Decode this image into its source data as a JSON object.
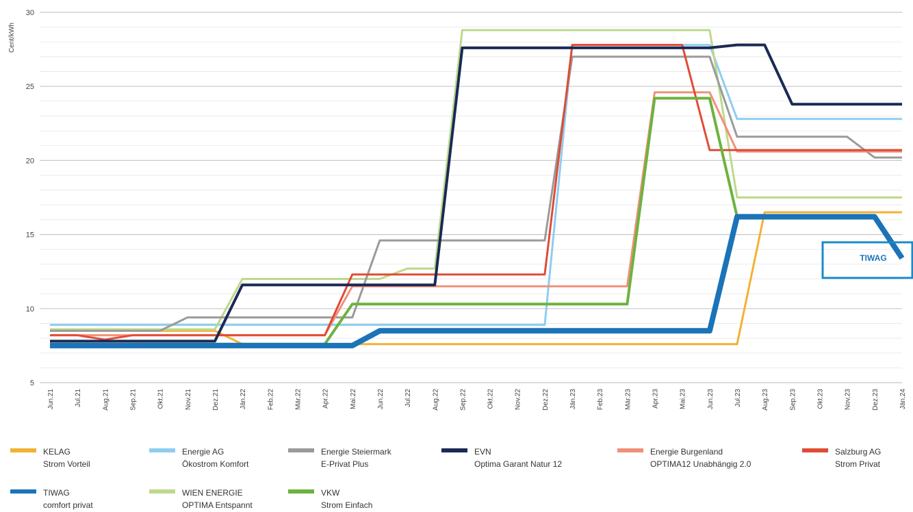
{
  "chart_data": {
    "type": "line",
    "ylabel": "Cent/kWh",
    "ylim": [
      5,
      30
    ],
    "yticks": [
      5,
      10,
      15,
      20,
      25,
      30
    ],
    "grid": true,
    "legend_position": "bottom",
    "categories": [
      "Jun.21",
      "Jul.21",
      "Aug.21",
      "Sep.21",
      "Okt.21",
      "Nov.21",
      "Dez.21",
      "Jän.22",
      "Feb.22",
      "Mär.22",
      "Apr.22",
      "Mai.22",
      "Jun.22",
      "Jul.22",
      "Aug.22",
      "Sep.22",
      "Okt.22",
      "Nov.22",
      "Dez.22",
      "Jän.23",
      "Feb.23",
      "Mär.23",
      "Apr.23",
      "Mai.23",
      "Jun.23",
      "Jul.23",
      "Aug.23",
      "Sep.23",
      "Okt.23",
      "Nov.23",
      "Dez.23",
      "Jän.24"
    ],
    "series": [
      {
        "name": "KELAG",
        "subtitle": "Strom Vorteil",
        "color": "#f2b134",
        "width": 3,
        "values": [
          8.5,
          8.5,
          8.5,
          8.5,
          8.5,
          8.5,
          8.5,
          7.6,
          7.6,
          7.6,
          7.6,
          7.6,
          7.6,
          7.6,
          7.6,
          7.6,
          7.6,
          7.6,
          7.6,
          7.6,
          7.6,
          7.6,
          7.6,
          7.6,
          7.6,
          7.6,
          16.5,
          16.5,
          16.5,
          16.5,
          16.5,
          16.5
        ]
      },
      {
        "name": "Energie AG",
        "subtitle": "Ökostrom Komfort",
        "color": "#8ecdf0",
        "width": 3,
        "values": [
          8.9,
          8.9,
          8.9,
          8.9,
          8.9,
          8.9,
          8.9,
          8.9,
          8.9,
          8.9,
          8.9,
          8.9,
          8.9,
          8.9,
          8.9,
          8.9,
          8.9,
          8.9,
          8.9,
          27.8,
          27.8,
          27.8,
          27.8,
          27.8,
          27.8,
          22.8,
          22.8,
          22.8,
          22.8,
          22.8,
          22.8,
          22.8
        ]
      },
      {
        "name": "Energie Steiermark",
        "subtitle": "E-Privat Plus",
        "color": "#9a9a9a",
        "width": 3,
        "values": [
          8.5,
          8.5,
          8.5,
          8.5,
          8.5,
          9.4,
          9.4,
          9.4,
          9.4,
          9.4,
          9.4,
          9.4,
          14.6,
          14.6,
          14.6,
          14.6,
          14.6,
          14.6,
          14.6,
          27.0,
          27.0,
          27.0,
          27.0,
          27.0,
          27.0,
          21.6,
          21.6,
          21.6,
          21.6,
          21.6,
          20.2,
          20.2
        ]
      },
      {
        "name": "EVN",
        "subtitle": "Optima Garant Natur 12",
        "color": "#1b2a55",
        "width": 4,
        "values": [
          7.8,
          7.8,
          7.8,
          7.8,
          7.8,
          7.8,
          7.8,
          11.6,
          11.6,
          11.6,
          11.6,
          11.6,
          11.6,
          11.6,
          11.6,
          27.6,
          27.6,
          27.6,
          27.6,
          27.6,
          27.6,
          27.6,
          27.6,
          27.6,
          27.6,
          27.8,
          27.8,
          23.8,
          23.8,
          23.8,
          23.8,
          23.8
        ]
      },
      {
        "name": "Energie Burgenland",
        "subtitle": "OPTIMA12 Unabhängig 2.0",
        "color": "#f0907a",
        "width": 3,
        "values": [
          8.2,
          8.2,
          8.2,
          8.2,
          8.2,
          8.2,
          8.2,
          8.2,
          8.2,
          8.2,
          8.2,
          11.5,
          11.5,
          11.5,
          11.5,
          11.5,
          11.5,
          11.5,
          11.5,
          11.5,
          11.5,
          11.5,
          24.6,
          24.6,
          24.6,
          20.6,
          20.6,
          20.6,
          20.6,
          20.6,
          20.6,
          20.6
        ]
      },
      {
        "name": "Salzburg AG",
        "subtitle": "Strom Privat",
        "color": "#e04b35",
        "width": 3,
        "values": [
          8.2,
          8.2,
          7.9,
          8.2,
          8.2,
          8.2,
          8.2,
          8.2,
          8.2,
          8.2,
          8.2,
          12.3,
          12.3,
          12.3,
          12.3,
          12.3,
          12.3,
          12.3,
          12.3,
          27.8,
          27.8,
          27.8,
          27.8,
          27.8,
          20.7,
          20.7,
          20.7,
          20.7,
          20.7,
          20.7,
          20.7,
          20.7
        ]
      },
      {
        "name": "TIWAG",
        "subtitle": "comfort privat",
        "color": "#1b73b8",
        "width": 8,
        "values": [
          7.5,
          7.5,
          7.5,
          7.5,
          7.5,
          7.5,
          7.5,
          7.5,
          7.5,
          7.5,
          7.5,
          7.5,
          8.5,
          8.5,
          8.5,
          8.5,
          8.5,
          8.5,
          8.5,
          8.5,
          8.5,
          8.5,
          8.5,
          8.5,
          8.5,
          16.2,
          16.2,
          16.2,
          16.2,
          16.2,
          16.2,
          13.4
        ]
      },
      {
        "name": "WIEN ENERGIE",
        "subtitle": "OPTIMA Entspannt",
        "color": "#bcd98c",
        "width": 3,
        "values": [
          8.6,
          8.6,
          8.6,
          8.6,
          8.6,
          8.6,
          8.6,
          12.0,
          12.0,
          12.0,
          12.0,
          12.0,
          12.0,
          12.7,
          12.7,
          28.8,
          28.8,
          28.8,
          28.8,
          28.8,
          28.8,
          28.8,
          28.8,
          28.8,
          28.8,
          17.5,
          17.5,
          17.5,
          17.5,
          17.5,
          17.5,
          17.5
        ]
      },
      {
        "name": "VKW",
        "subtitle": "Strom Einfach",
        "color": "#6db33f",
        "width": 4,
        "values": [
          7.6,
          7.6,
          7.6,
          7.6,
          7.6,
          7.6,
          7.6,
          7.6,
          7.6,
          7.6,
          7.6,
          10.3,
          10.3,
          10.3,
          10.3,
          10.3,
          10.3,
          10.3,
          10.3,
          10.3,
          10.3,
          10.3,
          24.2,
          24.2,
          24.2,
          16.2,
          16.2,
          16.2,
          16.2,
          16.2,
          16.2,
          13.4
        ]
      }
    ],
    "annotation": {
      "text": "TIWAG",
      "color": "#1b73b8"
    }
  }
}
